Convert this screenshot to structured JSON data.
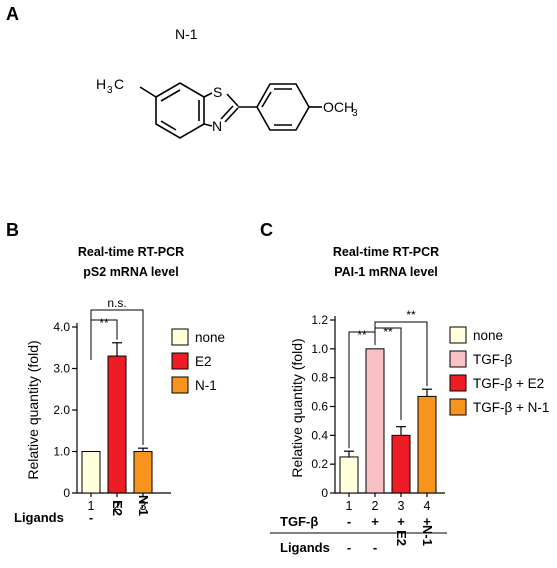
{
  "panels": {
    "A": {
      "letter": "A",
      "compound_name": "N-1",
      "structure_labels": {
        "methyl": "H",
        "methyl_sub": "3",
        "methyl_c": "C",
        "sulfur": "S",
        "nitrogen": "N",
        "methoxy": "OCH",
        "methoxy_sub": "3"
      }
    },
    "B": {
      "letter": "B"
    },
    "C": {
      "letter": "C"
    }
  },
  "chart_data": [
    {
      "type": "bar",
      "title": "Real-time RT-PCR",
      "subtitle": "pS2 mRNA level",
      "ylabel": "Relative quantity (fold)",
      "ylim": [
        0,
        4.0
      ],
      "yticks": [
        "0",
        "1.0",
        "2.0",
        "3.0",
        "4.0"
      ],
      "ytick_values": [
        0,
        1,
        2,
        3,
        4
      ],
      "categories": [
        "1",
        "2",
        "3"
      ],
      "values": [
        1.0,
        3.3,
        1.0
      ],
      "errors": [
        0,
        0.32,
        0.08
      ],
      "colors": [
        "#ffffdc",
        "#ee1c24",
        "#f7941d"
      ],
      "legend": {
        "position": "right",
        "items": [
          {
            "label": "none",
            "color": "#ffffdc"
          },
          {
            "label": "E2",
            "color": "#ee1c24"
          },
          {
            "label": "N-1",
            "color": "#f7941d"
          }
        ]
      },
      "conditions": [
        {
          "label": "Ligands",
          "values": [
            "-",
            "E2",
            "N-1"
          ]
        }
      ],
      "significance": [
        {
          "from": 0,
          "to": 1,
          "label": "**"
        },
        {
          "from": 0,
          "to": 2,
          "label": "n.s."
        }
      ]
    },
    {
      "type": "bar",
      "title": "Real-time RT-PCR",
      "subtitle": "PAI-1 mRNA level",
      "ylabel": "Relative quantity (fold)",
      "ylim": [
        0,
        1.2
      ],
      "yticks": [
        "0",
        "0.2",
        "0.4",
        "0.6",
        "0.8",
        "1.0",
        "1.2"
      ],
      "ytick_values": [
        0,
        0.2,
        0.4,
        0.6,
        0.8,
        1.0,
        1.2
      ],
      "categories": [
        "1",
        "2",
        "3",
        "4"
      ],
      "values": [
        0.25,
        1.0,
        0.4,
        0.67
      ],
      "errors": [
        0.04,
        0,
        0.06,
        0.05
      ],
      "colors": [
        "#ffffdc",
        "#f9c0c6",
        "#ee1c24",
        "#f7941d"
      ],
      "legend": {
        "position": "right",
        "items": [
          {
            "label": "none",
            "color": "#ffffdc"
          },
          {
            "label": "TGF-β",
            "color": "#f9c0c6"
          },
          {
            "label": "TGF-β + E2",
            "color": "#ee1c24"
          },
          {
            "label": "TGF-β + N-1",
            "color": "#f7941d"
          }
        ]
      },
      "conditions": [
        {
          "label": "TGF-β",
          "values": [
            "-",
            "+",
            "+",
            "+"
          ]
        },
        {
          "label": "Ligands",
          "values": [
            "-",
            "-",
            "E2",
            "N-1"
          ]
        }
      ],
      "significance": [
        {
          "from": 0,
          "to": 1,
          "label": "**"
        },
        {
          "from": 1,
          "to": 2,
          "label": "**"
        },
        {
          "from": 1,
          "to": 3,
          "label": "**"
        }
      ]
    }
  ]
}
